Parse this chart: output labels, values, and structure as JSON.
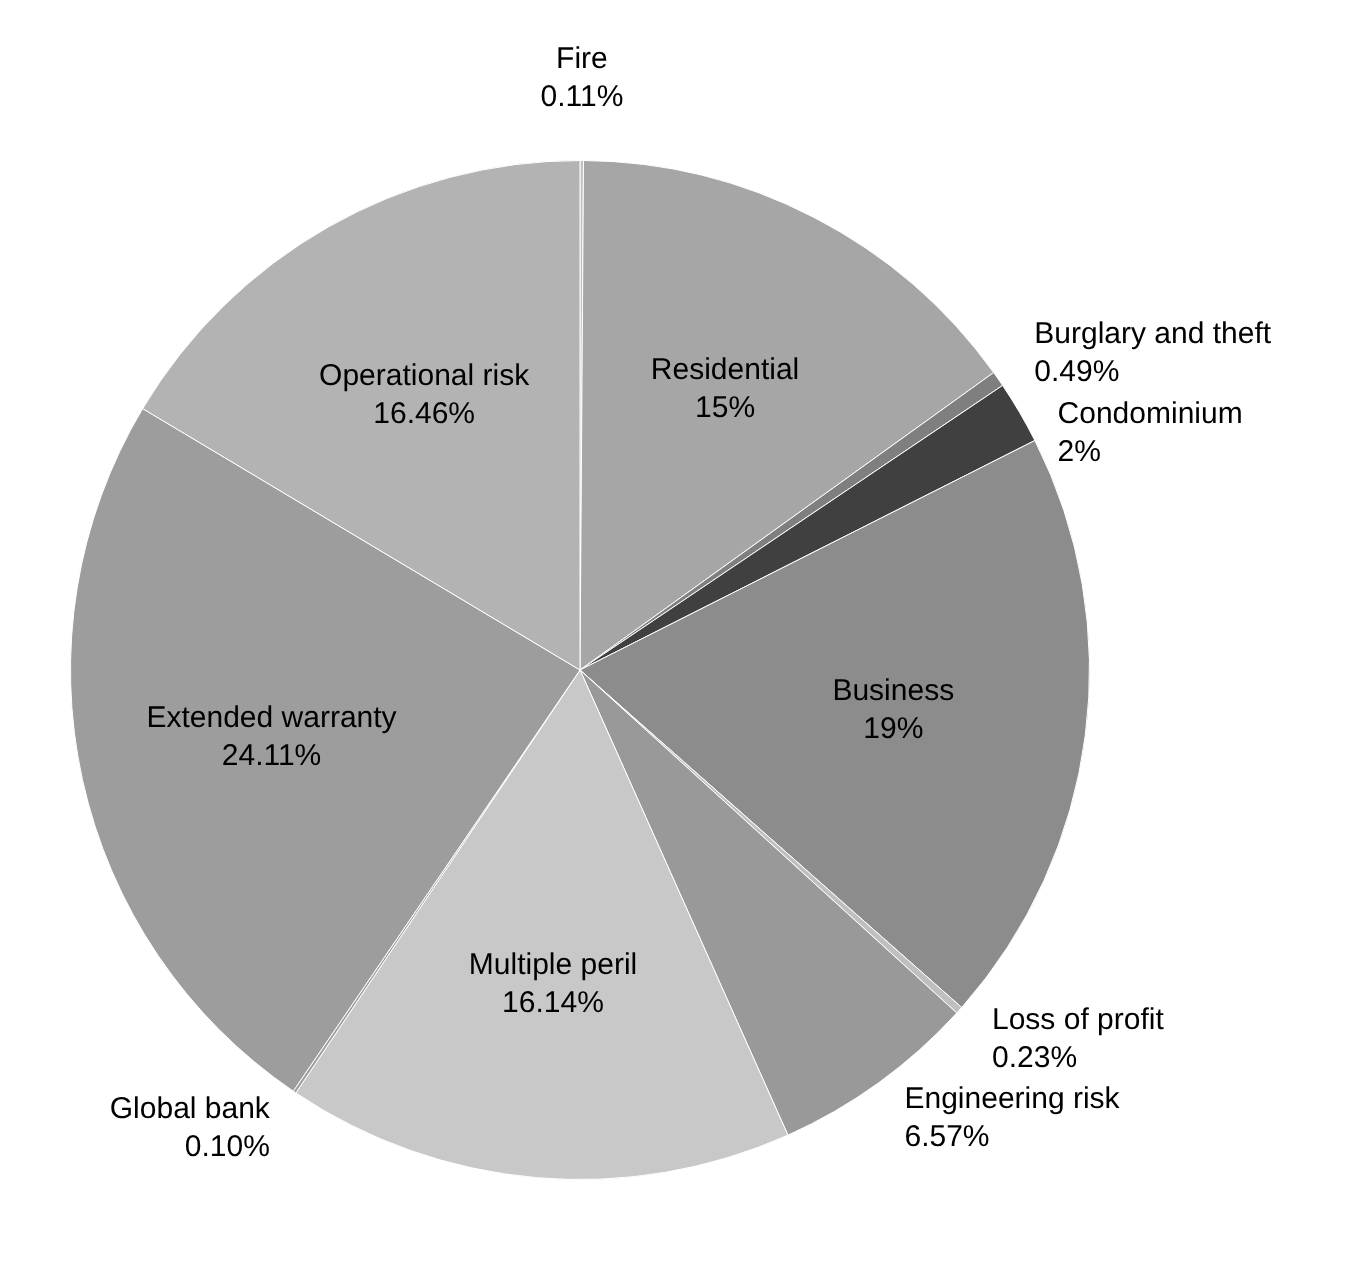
{
  "chart_data": {
    "type": "pie",
    "categories": [
      "Fire",
      "Residential",
      "Burglary and theft",
      "Condominium",
      "Business",
      "Loss of profit",
      "Engineering risk",
      "Multiple peril",
      "Global bank",
      "Extended warranty",
      "Operational risk"
    ],
    "values": [
      0.11,
      15,
      0.49,
      2,
      19,
      0.23,
      6.57,
      16.14,
      0.1,
      24.11,
      16.46
    ],
    "value_labels": [
      "0.11%",
      "15%",
      "0.49%",
      "2%",
      "19%",
      "0.23%",
      "6.57%",
      "16.14%",
      "0.10%",
      "24.11%",
      "16.46%"
    ],
    "colors": [
      "#bfbfbf",
      "#a6a6a6",
      "#7f7f7f",
      "#404040",
      "#8c8c8c",
      "#bfbfbf",
      "#999999",
      "#c8c8c8",
      "#a0a0a0",
      "#9d9d9d",
      "#b3b3b3"
    ],
    "legend": false
  }
}
